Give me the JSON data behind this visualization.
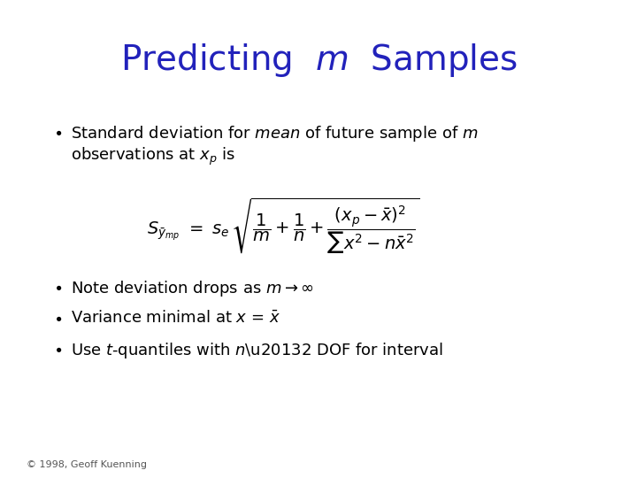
{
  "title": "Predicting  $m$  Samples",
  "title_color": "#2222BB",
  "title_fontsize": 28,
  "background_color": "#ffffff",
  "text_color": "#000000",
  "footer": "© 1998, Geoff Kuenning",
  "footer_fontsize": 8,
  "body_fontsize": 13,
  "formula_fontsize": 14
}
